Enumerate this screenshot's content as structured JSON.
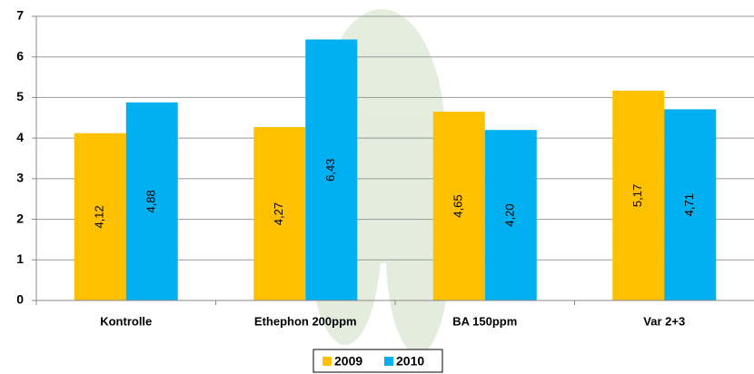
{
  "chart_data": {
    "type": "bar",
    "categories": [
      "Kontrolle",
      "Ethephon 200ppm",
      "BA 150ppm",
      "Var 2+3"
    ],
    "series": [
      {
        "name": "2009",
        "color": "#ffc000",
        "values": [
          4.12,
          4.27,
          4.65,
          5.17
        ],
        "value_labels": [
          "4,12",
          "4,27",
          "4,65",
          "5,17"
        ]
      },
      {
        "name": "2010",
        "color": "#00b0f0",
        "values": [
          4.88,
          6.43,
          4.2,
          4.71
        ],
        "value_labels": [
          "4,88",
          "6,43",
          "4,20",
          "4,71"
        ]
      }
    ],
    "ylim": [
      0,
      7
    ],
    "yticks": [
      0,
      1,
      2,
      3,
      4,
      5,
      6,
      7
    ],
    "grid": true,
    "legend": "bottom"
  }
}
